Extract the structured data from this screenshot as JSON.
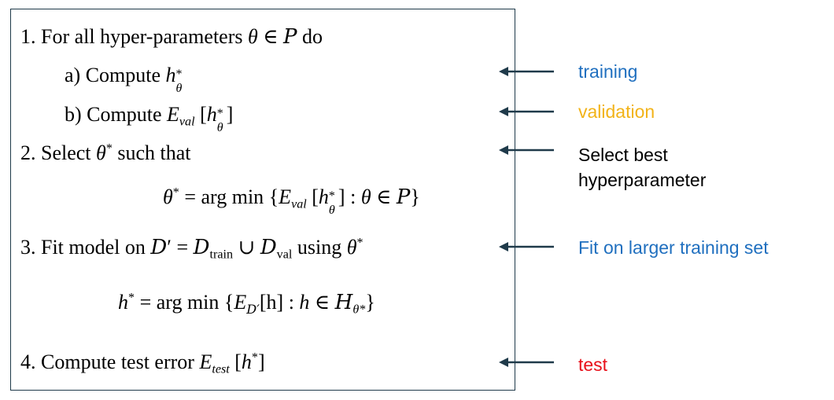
{
  "algorithm": {
    "step1": {
      "num": "1.",
      "text_a": "For all hyper-parameters",
      "theta": "θ",
      "in": "∈",
      "P": "P",
      "do": "do"
    },
    "step1a": {
      "label": "a)",
      "text": "Compute",
      "h": "h",
      "star": "*",
      "theta": "θ"
    },
    "step1b": {
      "label": "b)",
      "text": "Compute",
      "E": "E",
      "val": "val",
      "lb": "[",
      "h": "h",
      "star": "*",
      "theta": "θ",
      "rb": "]"
    },
    "step2": {
      "num": "2.",
      "text_a": "Select",
      "theta": "θ",
      "star": "*",
      "text_b": "such that"
    },
    "eq2": {
      "lhs": "θ",
      "star": "*",
      "eq": "= arg min",
      "lbrace": "{",
      "E": "E",
      "val": "val",
      "lb": "[",
      "h": "h",
      "star2": "*",
      "theta": "θ",
      "rb": "]",
      "colon": ":",
      "theta2": "θ",
      "in": "∈",
      "P": "P",
      "rbrace": "}"
    },
    "step3": {
      "num": "3.",
      "text_a": "Fit model on",
      "D": "D",
      "prime": "′",
      "eq": "=",
      "D1": "D",
      "train": "train",
      "cup": "∪",
      "D2": "D",
      "val": "val",
      "using": "using",
      "theta": "θ",
      "star": "*"
    },
    "eq3": {
      "lhs": "h",
      "star": "*",
      "eq": "= arg min",
      "lbrace": "{",
      "E": "E",
      "Dsub": "D′",
      "hbr": "[h]",
      "colon": ":",
      "h": "h",
      "in": "∈",
      "H": "H",
      "Hsub": "θ*",
      "rbrace": "}"
    },
    "step4": {
      "num": "4.",
      "text_a": "Compute test error",
      "E": "E",
      "test": "test",
      "lb": "[",
      "h": "h",
      "star": "*",
      "rb": "]"
    }
  },
  "annotations": {
    "training": {
      "text": "training",
      "color": "#1f6fbf"
    },
    "validation": {
      "text": "validation",
      "color": "#f2b318"
    },
    "select_l1": {
      "text": "Select best",
      "color": "#000000"
    },
    "select_l2": {
      "text": "hyperparameter",
      "color": "#000000"
    },
    "fit": {
      "text": "Fit on larger training set",
      "color": "#1f6fbf"
    },
    "test": {
      "text": "test",
      "color": "#e8101a"
    }
  },
  "arrow_color": "#1f3a4a"
}
